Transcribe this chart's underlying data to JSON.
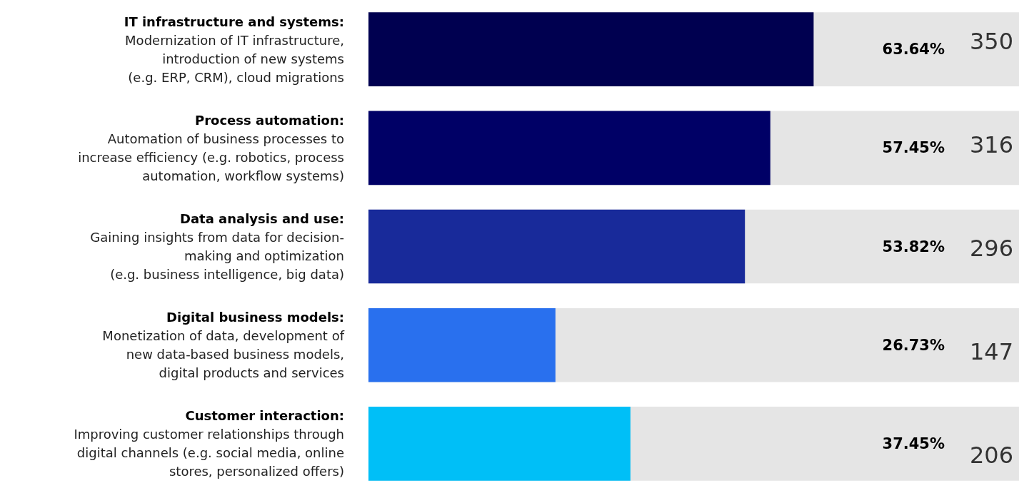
{
  "chart_data": {
    "type": "bar",
    "orientation": "horizontal",
    "categories": [
      "IT infrastructure and systems:\nModernization of IT infrastructure,\nintroduction of new systems\n(e.g. ERP, CRM), cloud migrations",
      "Process automation:\nAutomation of business processes to\nincrease efficiency (e.g. robotics, process\nautomation, workflow systems)",
      "Data analysis and use:\nGaining insights from data for decision-\nmaking and optimization\n(e.g. business intelligence, big data)",
      "Digital business models:\nMonetization of data, development of\nnew data-based business models,\ndigital products and services",
      "Customer interaction:\nImproving customer relationships through\ndigital channels (e.g. social media, online\nstores, personalized offers)"
    ],
    "values": [
      63.64,
      57.45,
      53.82,
      26.73,
      37.45
    ],
    "colors": [
      "#000050",
      "#000066",
      "#182a9a",
      "#2970ee",
      "#00bff7"
    ],
    "value_labels": [
      "63.64%",
      "57.45%",
      "53.82%",
      "26.73%",
      "37.45%"
    ],
    "annotations": [
      "350",
      "316",
      "296",
      "147",
      "206"
    ],
    "xlim": [
      0,
      93
    ],
    "grid": false
  }
}
